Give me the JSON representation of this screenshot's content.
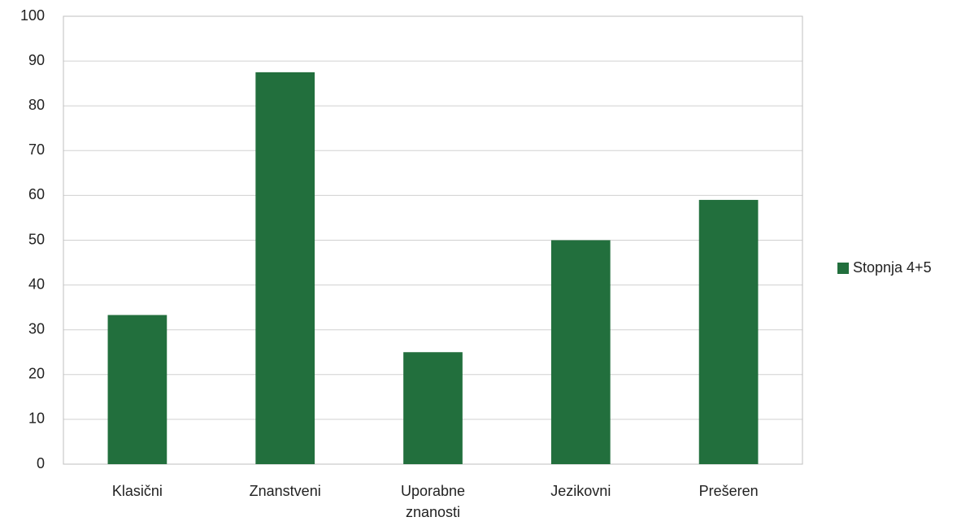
{
  "chart_data": {
    "type": "bar",
    "categories": [
      "Klasični",
      "Znanstveni",
      "Uporabne znanosti",
      "Jezikovni",
      "Prešeren"
    ],
    "series": [
      {
        "name": "Stopnja 4+5",
        "color": "#226f3d",
        "values": [
          33.3,
          87.5,
          25,
          50,
          59
        ]
      }
    ],
    "ylim": [
      0,
      100
    ],
    "yticks": [
      0,
      10,
      20,
      30,
      40,
      50,
      60,
      70,
      80,
      90,
      100
    ],
    "grid": true,
    "legend": "right"
  }
}
